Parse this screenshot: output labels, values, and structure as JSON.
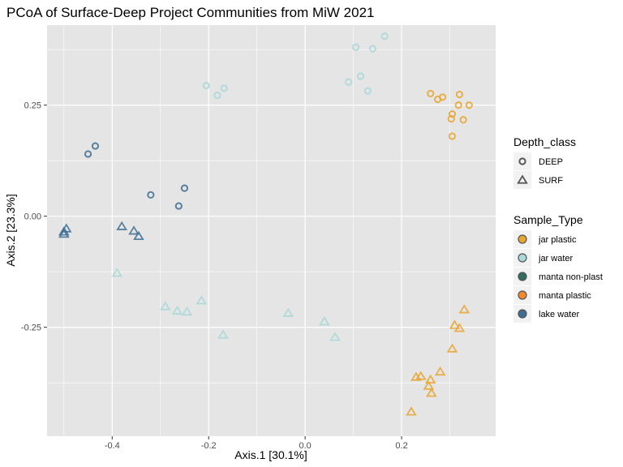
{
  "chart_data": {
    "type": "scatter",
    "title": "PCoA of Surface-Deep Project Communities from MiW 2021",
    "xlabel": "Axis.1   [30.1%]",
    "ylabel": "Axis.2   [23.3%]",
    "xlim": [
      -0.535,
      0.395
    ],
    "ylim": [
      -0.495,
      0.43
    ],
    "x_ticks": [
      {
        "value": -0.4,
        "label": "-0.4"
      },
      {
        "value": -0.2,
        "label": "-0.2"
      },
      {
        "value": 0.0,
        "label": "0.0"
      },
      {
        "value": 0.2,
        "label": "0.2"
      }
    ],
    "y_ticks": [
      {
        "value": 0.25,
        "label": "0.25"
      },
      {
        "value": 0.0,
        "label": "0.00"
      },
      {
        "value": -0.25,
        "label": "-0.25"
      }
    ],
    "grid": true,
    "panel_background": "#e5e5e5",
    "grid_color": "#ffffff",
    "legend_placement": "right",
    "legends": {
      "shape": {
        "title": "Depth_class",
        "entries": [
          {
            "label": "DEEP",
            "shape": "circle"
          },
          {
            "label": "SURF",
            "shape": "triangle"
          }
        ]
      },
      "color": {
        "title": "Sample_Type",
        "entries": [
          {
            "label": "jar plastic",
            "color": "#e8a530"
          },
          {
            "label": "jar water",
            "color": "#a8d8d8"
          },
          {
            "label": "manta non-plast",
            "color": "#2e6e5e"
          },
          {
            "label": "manta plastic",
            "color": "#f08a2a"
          },
          {
            "label": "lake water",
            "color": "#3f6e93"
          }
        ]
      }
    },
    "series": [
      {
        "name": "jar plastic",
        "color": "#e8a530",
        "points": [
          {
            "x": 0.26,
            "y": 0.276,
            "shape": "circle"
          },
          {
            "x": 0.275,
            "y": 0.263,
            "shape": "circle"
          },
          {
            "x": 0.285,
            "y": 0.268,
            "shape": "circle"
          },
          {
            "x": 0.32,
            "y": 0.274,
            "shape": "circle"
          },
          {
            "x": 0.318,
            "y": 0.25,
            "shape": "circle"
          },
          {
            "x": 0.34,
            "y": 0.25,
            "shape": "circle"
          },
          {
            "x": 0.305,
            "y": 0.23,
            "shape": "circle"
          },
          {
            "x": 0.303,
            "y": 0.219,
            "shape": "circle"
          },
          {
            "x": 0.328,
            "y": 0.217,
            "shape": "circle"
          },
          {
            "x": 0.305,
            "y": 0.18,
            "shape": "circle"
          },
          {
            "x": 0.33,
            "y": -0.21,
            "shape": "triangle"
          },
          {
            "x": 0.31,
            "y": -0.245,
            "shape": "triangle"
          },
          {
            "x": 0.32,
            "y": -0.252,
            "shape": "triangle"
          },
          {
            "x": 0.305,
            "y": -0.298,
            "shape": "triangle"
          },
          {
            "x": 0.28,
            "y": -0.35,
            "shape": "triangle"
          },
          {
            "x": 0.24,
            "y": -0.36,
            "shape": "triangle"
          },
          {
            "x": 0.23,
            "y": -0.362,
            "shape": "triangle"
          },
          {
            "x": 0.26,
            "y": -0.368,
            "shape": "triangle"
          },
          {
            "x": 0.256,
            "y": -0.382,
            "shape": "triangle"
          },
          {
            "x": 0.262,
            "y": -0.398,
            "shape": "triangle"
          },
          {
            "x": 0.22,
            "y": -0.44,
            "shape": "triangle"
          }
        ]
      },
      {
        "name": "jar water",
        "color": "#a8d8d8",
        "points": [
          {
            "x": 0.165,
            "y": 0.405,
            "shape": "circle"
          },
          {
            "x": 0.105,
            "y": 0.38,
            "shape": "circle"
          },
          {
            "x": 0.14,
            "y": 0.377,
            "shape": "circle"
          },
          {
            "x": 0.115,
            "y": 0.315,
            "shape": "circle"
          },
          {
            "x": 0.09,
            "y": 0.302,
            "shape": "circle"
          },
          {
            "x": 0.13,
            "y": 0.282,
            "shape": "circle"
          },
          {
            "x": -0.205,
            "y": 0.294,
            "shape": "circle"
          },
          {
            "x": -0.168,
            "y": 0.288,
            "shape": "circle"
          },
          {
            "x": -0.182,
            "y": 0.272,
            "shape": "circle"
          },
          {
            "x": -0.39,
            "y": -0.128,
            "shape": "triangle"
          },
          {
            "x": -0.29,
            "y": -0.203,
            "shape": "triangle"
          },
          {
            "x": -0.265,
            "y": -0.213,
            "shape": "triangle"
          },
          {
            "x": -0.245,
            "y": -0.215,
            "shape": "triangle"
          },
          {
            "x": -0.215,
            "y": -0.19,
            "shape": "triangle"
          },
          {
            "x": -0.17,
            "y": -0.267,
            "shape": "triangle"
          },
          {
            "x": -0.035,
            "y": -0.218,
            "shape": "triangle"
          },
          {
            "x": 0.04,
            "y": -0.237,
            "shape": "triangle"
          },
          {
            "x": 0.062,
            "y": -0.272,
            "shape": "triangle"
          }
        ]
      },
      {
        "name": "lake water",
        "color": "#3f6e93",
        "points": [
          {
            "x": -0.435,
            "y": 0.158,
            "shape": "circle"
          },
          {
            "x": -0.45,
            "y": 0.14,
            "shape": "circle"
          },
          {
            "x": -0.32,
            "y": 0.048,
            "shape": "circle"
          },
          {
            "x": -0.25,
            "y": 0.063,
            "shape": "circle"
          },
          {
            "x": -0.262,
            "y": 0.023,
            "shape": "circle"
          },
          {
            "x": -0.5,
            "y": -0.035,
            "shape": "triangle"
          },
          {
            "x": -0.495,
            "y": -0.028,
            "shape": "triangle"
          },
          {
            "x": -0.5,
            "y": -0.04,
            "shape": "triangle"
          },
          {
            "x": -0.38,
            "y": -0.023,
            "shape": "triangle"
          },
          {
            "x": -0.355,
            "y": -0.033,
            "shape": "triangle"
          },
          {
            "x": -0.345,
            "y": -0.045,
            "shape": "triangle"
          }
        ]
      }
    ]
  }
}
